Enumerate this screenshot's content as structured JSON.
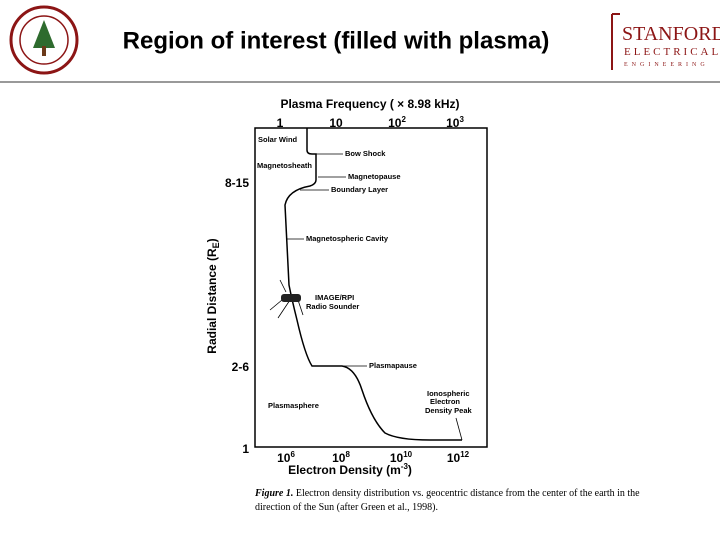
{
  "header": {
    "title": "Region of interest (filled with plasma)",
    "logo": {
      "name": "STANFORD",
      "line2": "ELECTRICAL",
      "line3": "ENGINEERING"
    }
  },
  "figure": {
    "top_axis_title": "Plasma Frequency ( × 8.98 kHz)",
    "top_ticks": [
      {
        "base": "1",
        "exp": ""
      },
      {
        "base": "10",
        "exp": ""
      },
      {
        "base": "10",
        "exp": "2"
      },
      {
        "base": "10",
        "exp": "3"
      }
    ],
    "bottom_ticks": [
      {
        "base": "10",
        "exp": "6"
      },
      {
        "base": "10",
        "exp": "8"
      },
      {
        "base": "10",
        "exp": "10"
      },
      {
        "base": "10",
        "exp": "12"
      }
    ],
    "x_axis_title": {
      "text": "Electron Density (m",
      "exp": "-3",
      "close": ")"
    },
    "y_axis_title": {
      "text": "Radial Distance (R",
      "sub": "E",
      "close": ")"
    },
    "y_ticks": [
      "8-15",
      "2-6",
      "1"
    ],
    "annotations": [
      "Solar Wind",
      "Bow Shock",
      "Magnetosheath",
      "Magnetopause",
      "Boundary Layer",
      "Magnetospheric Cavity",
      "IMAGE/RPI",
      "Radio Sounder",
      "Plasmapause",
      "Plasmasphere",
      "Ionospheric",
      "Electron",
      "Density Peak"
    ],
    "caption": {
      "label": "Figure 1.",
      "line1": "Electron density distribution vs. geocentric distance from the center of the earth in the",
      "line2": "direction of the Sun (after Green et al., 1998)."
    }
  }
}
